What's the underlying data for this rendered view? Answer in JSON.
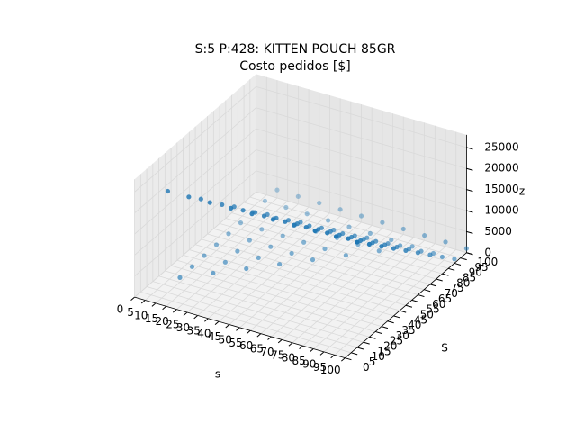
{
  "chart_data": {
    "type": "scatter3d",
    "title": "S:5 P:428: KITTEN POUCH 85GR",
    "subtitle": "Costo pedidos [$]",
    "xlabel": "s",
    "ylabel": "S",
    "zlabel": "z",
    "color": "#1f77b4",
    "x": [
      10,
      20,
      30,
      40,
      50,
      60,
      70,
      80,
      90,
      100
    ],
    "y": [
      10,
      20,
      30,
      40,
      50,
      60,
      70,
      80,
      90,
      100
    ],
    "z": [
      [
        24100,
        24200,
        24300,
        24400,
        24500,
        24600,
        24700,
        24800,
        24900,
        25000
      ],
      [
        1100,
        21200,
        21300,
        21400,
        21500,
        21600,
        21700,
        21800,
        21900,
        22000
      ],
      [
        1200,
        1100,
        18300,
        18400,
        18500,
        18600,
        18700,
        18800,
        18900,
        19000
      ],
      [
        1300,
        1200,
        1100,
        15400,
        15500,
        15600,
        15700,
        15800,
        15900,
        16000
      ],
      [
        1400,
        1300,
        1200,
        1100,
        12500,
        12600,
        12700,
        12800,
        12900,
        13000
      ],
      [
        1500,
        1400,
        1300,
        1200,
        1100,
        9600,
        9700,
        9800,
        9900,
        10000
      ],
      [
        1600,
        1500,
        1400,
        1300,
        1200,
        1100,
        6700,
        6800,
        6900,
        7000
      ],
      [
        1700,
        1600,
        1500,
        1400,
        1300,
        1200,
        1100,
        3800,
        3900,
        4000
      ],
      [
        1800,
        1700,
        1600,
        1500,
        1400,
        1300,
        1200,
        1100,
        900,
        1000
      ],
      [
        1900,
        1800,
        1700,
        1600,
        1500,
        1400,
        1300,
        1200,
        1100,
        1000
      ]
    ],
    "xlim": [
      0,
      100
    ],
    "ylim": [
      0,
      100
    ],
    "zlim": [
      0,
      28000
    ],
    "xticks": [
      0,
      5,
      10,
      15,
      20,
      25,
      30,
      35,
      40,
      45,
      50,
      55,
      60,
      65,
      70,
      75,
      80,
      85,
      90,
      95,
      100
    ],
    "yticks": [
      0,
      5,
      10,
      15,
      20,
      25,
      30,
      35,
      40,
      45,
      50,
      55,
      60,
      65,
      70,
      75,
      80,
      85,
      90,
      95,
      100
    ],
    "zticks": [
      0,
      5000,
      10000,
      15000,
      20000,
      25000
    ],
    "grid": true
  }
}
